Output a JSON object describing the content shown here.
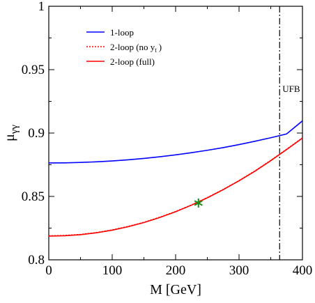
{
  "chart_data": {
    "type": "line",
    "xlabel": "M  [GeV]",
    "ylabel_main": "μ",
    "ylabel_sub": "γγ",
    "xlim": [
      0,
      400
    ],
    "ylim": [
      0.8,
      1.0
    ],
    "xticks": [
      0,
      100,
      200,
      300,
      400
    ],
    "xtick_labels": [
      "0",
      "100",
      "200",
      "300",
      "400"
    ],
    "yticks": [
      0.8,
      0.85,
      0.9,
      0.95,
      1.0
    ],
    "ytick_labels": [
      "0.8",
      "0.85",
      "0.9",
      "0.95",
      "1"
    ],
    "legend_position": "top-left",
    "series": [
      {
        "name": "1-loop",
        "color": "#0000ff",
        "style": "solid",
        "x": [
          0,
          25,
          50,
          75,
          100,
          125,
          150,
          175,
          200,
          225,
          250,
          275,
          300,
          325,
          350,
          375,
          400
        ],
        "y": [
          0.8764,
          0.8765,
          0.8768,
          0.8773,
          0.878,
          0.8789,
          0.88,
          0.8813,
          0.8828,
          0.8845,
          0.8864,
          0.8885,
          0.8909,
          0.8935,
          0.8963,
          0.8993,
          0.9096
        ]
      },
      {
        "name_main": "2-loop (no y",
        "name_sub": "t",
        "name_tail": ")",
        "color": "#ff0000",
        "style": "dotted",
        "x": [
          0,
          25,
          50,
          75,
          100,
          125,
          150,
          175,
          200,
          225,
          250,
          275,
          300,
          325,
          350,
          375,
          400
        ],
        "y": [
          0.8189,
          0.8192,
          0.82,
          0.8215,
          0.8236,
          0.8263,
          0.8296,
          0.8336,
          0.8381,
          0.8433,
          0.8491,
          0.8555,
          0.8625,
          0.8701,
          0.8784,
          0.8872,
          0.8962
        ]
      },
      {
        "name": "2-loop (full)",
        "color": "#ff0000",
        "style": "solid",
        "x": [
          0,
          25,
          50,
          75,
          100,
          125,
          150,
          175,
          200,
          225,
          250,
          275,
          300,
          325,
          350,
          375,
          400
        ],
        "y": [
          0.8187,
          0.819,
          0.8198,
          0.8213,
          0.8234,
          0.8261,
          0.8294,
          0.8334,
          0.8379,
          0.8431,
          0.8489,
          0.8553,
          0.8623,
          0.8699,
          0.8782,
          0.887,
          0.896
        ]
      }
    ],
    "vertical_line": {
      "x": 364,
      "label": "UFB",
      "color": "#000000",
      "style": "dash-dot"
    },
    "marker": {
      "x": 236,
      "y": 0.8448,
      "symbol": "*",
      "color": "#1a8a1a"
    }
  }
}
